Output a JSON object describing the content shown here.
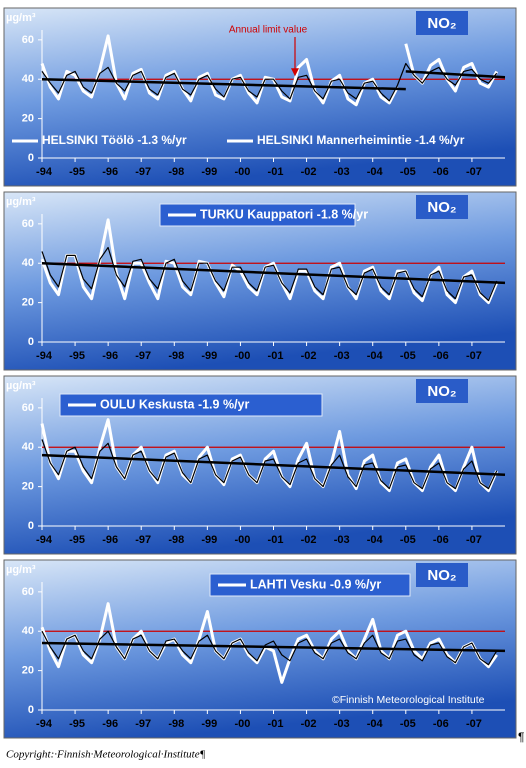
{
  "chart_data": [
    {
      "type": "line",
      "unit_label": "µg/m³",
      "title": "NO₂",
      "annotation": "Annual limit value",
      "legend": "bottom",
      "x": [
        1994,
        1994.25,
        1994.5,
        1994.75,
        1995,
        1995.25,
        1995.5,
        1995.75,
        1996,
        1996.25,
        1996.5,
        1996.75,
        1997,
        1997.25,
        1997.5,
        1997.75,
        1998,
        1998.25,
        1998.5,
        1998.75,
        1999,
        1999.25,
        1999.5,
        1999.75,
        2000,
        2000.25,
        2000.5,
        2000.75,
        2001,
        2001.25,
        2001.5,
        2001.75,
        2002,
        2002.25,
        2002.5,
        2002.75,
        2003,
        2003.25,
        2003.5,
        2003.75,
        2004,
        2004.25,
        2004.5,
        2004.75,
        2005,
        2005.25,
        2005.5,
        2005.75,
        2006,
        2006.25,
        2006.5,
        2006.75,
        2007,
        2007.25,
        2007.5,
        2007.75
      ],
      "series": [
        {
          "name": "HELSINKI Töölö -1.3 %/yr",
          "color": "#ffffff",
          "values": [
            48,
            36,
            30,
            44,
            42,
            34,
            31,
            45,
            62,
            38,
            30,
            43,
            45,
            33,
            30,
            42,
            44,
            35,
            29,
            41,
            43,
            32,
            30,
            40,
            42,
            33,
            28,
            41,
            40,
            31,
            29,
            46,
            50,
            34,
            28,
            39,
            42,
            30,
            27,
            38,
            40,
            31,
            28,
            36,
            null,
            null,
            null,
            null,
            null,
            null,
            null,
            null,
            null,
            null,
            null,
            null
          ]
        },
        {
          "name": "HELSINKI Mannerheimintie  -1.4 %/yr",
          "color": "#ffffff",
          "values": [
            null,
            null,
            null,
            null,
            null,
            null,
            null,
            null,
            null,
            null,
            null,
            null,
            null,
            null,
            null,
            null,
            null,
            null,
            null,
            null,
            null,
            null,
            null,
            null,
            null,
            null,
            null,
            null,
            null,
            null,
            null,
            null,
            null,
            null,
            null,
            null,
            null,
            null,
            null,
            null,
            null,
            null,
            null,
            null,
            58,
            42,
            38,
            47,
            50,
            40,
            34,
            46,
            48,
            38,
            36,
            44
          ]
        },
        {
          "color": "#000000",
          "values": [
            44,
            38,
            33,
            42,
            44,
            36,
            33,
            43,
            46,
            38,
            34,
            42,
            44,
            35,
            32,
            41,
            43,
            35,
            32,
            40,
            42,
            35,
            31,
            40,
            41,
            34,
            31,
            40,
            40,
            34,
            30,
            41,
            42,
            34,
            30,
            39,
            40,
            33,
            30,
            38,
            39,
            33,
            29,
            37,
            48,
            42,
            38,
            44,
            46,
            40,
            37,
            44,
            45,
            40,
            38,
            43
          ]
        }
      ],
      "trends": [
        {
          "x": [
            1994,
            2005
          ],
          "values": [
            40,
            35
          ],
          "color": "#000000"
        },
        {
          "x": [
            2005,
            2008
          ],
          "values": [
            44,
            41
          ],
          "color": "#000000"
        }
      ],
      "limit": 40,
      "limit_color": "#cc0000",
      "xlim": [
        1994,
        2008
      ],
      "ylim": [
        0,
        65
      ],
      "yticks": [
        0,
        20,
        40,
        60
      ],
      "xticks": [
        {
          "value": 1994,
          "label": "-94"
        },
        {
          "value": 1995,
          "label": "-95"
        },
        {
          "value": 1996,
          "label": "-96"
        },
        {
          "value": 1997,
          "label": "-97"
        },
        {
          "value": 1998,
          "label": "-98"
        },
        {
          "value": 1999,
          "label": "-99"
        },
        {
          "value": 2000,
          "label": "-00"
        },
        {
          "value": 2001,
          "label": "-01"
        },
        {
          "value": 2002,
          "label": "-02"
        },
        {
          "value": 2003,
          "label": "-03"
        },
        {
          "value": 2004,
          "label": "-04"
        },
        {
          "value": 2005,
          "label": "-05"
        },
        {
          "value": 2006,
          "label": "-06"
        },
        {
          "value": 2007,
          "label": "-07"
        }
      ]
    },
    {
      "type": "line",
      "unit_label": "µg/m³",
      "title": "NO₂",
      "legend": "top",
      "x": [
        1994,
        1994.25,
        1994.5,
        1994.75,
        1995,
        1995.25,
        1995.5,
        1995.75,
        1996,
        1996.25,
        1996.5,
        1996.75,
        1997,
        1997.25,
        1997.5,
        1997.75,
        1998,
        1998.25,
        1998.5,
        1998.75,
        1999,
        1999.25,
        1999.5,
        1999.75,
        2000,
        2000.25,
        2000.5,
        2000.75,
        2001,
        2001.25,
        2001.5,
        2001.75,
        2002,
        2002.25,
        2002.5,
        2002.75,
        2003,
        2003.25,
        2003.5,
        2003.75,
        2004,
        2004.25,
        2004.5,
        2004.75,
        2005,
        2005.25,
        2005.5,
        2005.75,
        2006,
        2006.25,
        2006.5,
        2006.75,
        2007,
        2007.25,
        2007.5,
        2007.75
      ],
      "series": [
        {
          "name": "TURKU Kauppatori -1.8 %/yr",
          "color": "#ffffff",
          "values": [
            42,
            30,
            24,
            44,
            44,
            28,
            22,
            42,
            62,
            35,
            22,
            40,
            40,
            30,
            22,
            41,
            40,
            28,
            24,
            41,
            40,
            30,
            23,
            39,
            36,
            28,
            24,
            38,
            40,
            30,
            22,
            36,
            36,
            26,
            22,
            38,
            40,
            28,
            22,
            36,
            38,
            26,
            22,
            36,
            36,
            25,
            21,
            34,
            38,
            24,
            20,
            33,
            36,
            24,
            20,
            30
          ]
        },
        {
          "color": "#000000",
          "values": [
            46,
            34,
            28,
            44,
            44,
            32,
            27,
            42,
            48,
            34,
            28,
            41,
            42,
            32,
            27,
            40,
            42,
            31,
            26,
            40,
            40,
            31,
            26,
            38,
            38,
            30,
            26,
            38,
            39,
            30,
            25,
            37,
            37,
            28,
            24,
            37,
            38,
            28,
            24,
            35,
            37,
            28,
            24,
            35,
            36,
            27,
            23,
            34,
            36,
            26,
            22,
            33,
            34,
            25,
            21,
            31
          ]
        }
      ],
      "trends": [
        {
          "x": [
            1994,
            2008
          ],
          "values": [
            40,
            30
          ],
          "color": "#000000"
        }
      ],
      "limit": 40,
      "limit_color": "#cc0000",
      "xlim": [
        1994,
        2008
      ],
      "ylim": [
        0,
        65
      ],
      "yticks": [
        0,
        20,
        40,
        60
      ],
      "xticks": [
        {
          "value": 1994,
          "label": "-94"
        },
        {
          "value": 1995,
          "label": "-95"
        },
        {
          "value": 1996,
          "label": "-96"
        },
        {
          "value": 1997,
          "label": "-97"
        },
        {
          "value": 1998,
          "label": "-98"
        },
        {
          "value": 1999,
          "label": "-99"
        },
        {
          "value": 2000,
          "label": "-00"
        },
        {
          "value": 2001,
          "label": "-01"
        },
        {
          "value": 2002,
          "label": "-02"
        },
        {
          "value": 2003,
          "label": "-03"
        },
        {
          "value": 2004,
          "label": "-04"
        },
        {
          "value": 2005,
          "label": "-05"
        },
        {
          "value": 2006,
          "label": "-06"
        },
        {
          "value": 2007,
          "label": "-07"
        }
      ]
    },
    {
      "type": "line",
      "unit_label": "µg/m³",
      "title": "NO₂",
      "legend": "top",
      "x": [
        1994,
        1994.25,
        1994.5,
        1994.75,
        1995,
        1995.25,
        1995.5,
        1995.75,
        1996,
        1996.25,
        1996.5,
        1996.75,
        1997,
        1997.25,
        1997.5,
        1997.75,
        1998,
        1998.25,
        1998.5,
        1998.75,
        1999,
        1999.25,
        1999.5,
        1999.75,
        2000,
        2000.25,
        2000.5,
        2000.75,
        2001,
        2001.25,
        2001.5,
        2001.75,
        2002,
        2002.25,
        2002.5,
        2002.75,
        2003,
        2003.25,
        2003.5,
        2003.75,
        2004,
        2004.25,
        2004.5,
        2004.75,
        2005,
        2005.25,
        2005.5,
        2005.75,
        2006,
        2006.25,
        2006.5,
        2006.75,
        2007,
        2007.25,
        2007.5,
        2007.75
      ],
      "series": [
        {
          "name": "OULU Keskusta -1.9 %/yr",
          "color": "#ffffff",
          "values": [
            52,
            32,
            24,
            38,
            38,
            28,
            22,
            40,
            54,
            30,
            24,
            36,
            40,
            28,
            22,
            36,
            38,
            26,
            22,
            35,
            40,
            26,
            21,
            34,
            36,
            26,
            22,
            34,
            38,
            25,
            20,
            34,
            42,
            24,
            20,
            32,
            48,
            26,
            19,
            33,
            36,
            22,
            18,
            32,
            34,
            22,
            18,
            30,
            36,
            22,
            18,
            30,
            40,
            22,
            18,
            28
          ]
        },
        {
          "color": "#000000",
          "values": [
            44,
            32,
            26,
            38,
            40,
            30,
            24,
            38,
            42,
            30,
            24,
            36,
            38,
            28,
            23,
            35,
            37,
            27,
            22,
            34,
            36,
            26,
            22,
            33,
            35,
            26,
            22,
            33,
            34,
            25,
            21,
            32,
            34,
            24,
            20,
            31,
            36,
            25,
            20,
            31,
            32,
            23,
            19,
            30,
            31,
            22,
            19,
            29,
            32,
            22,
            19,
            29,
            33,
            22,
            19,
            28
          ]
        }
      ],
      "trends": [
        {
          "x": [
            1994,
            2008
          ],
          "values": [
            36,
            26
          ],
          "color": "#000000"
        }
      ],
      "limit": 40,
      "limit_color": "#cc0000",
      "xlim": [
        1994,
        2008
      ],
      "ylim": [
        0,
        65
      ],
      "yticks": [
        0,
        20,
        40,
        60
      ],
      "xticks": [
        {
          "value": 1994,
          "label": "-94"
        },
        {
          "value": 1995,
          "label": "-95"
        },
        {
          "value": 1996,
          "label": "-96"
        },
        {
          "value": 1997,
          "label": "-97"
        },
        {
          "value": 1998,
          "label": "-98"
        },
        {
          "value": 1999,
          "label": "-99"
        },
        {
          "value": 2000,
          "label": "-00"
        },
        {
          "value": 2001,
          "label": "-01"
        },
        {
          "value": 2002,
          "label": "-02"
        },
        {
          "value": 2003,
          "label": "-03"
        },
        {
          "value": 2004,
          "label": "-04"
        },
        {
          "value": 2005,
          "label": "-05"
        },
        {
          "value": 2006,
          "label": "-06"
        },
        {
          "value": 2007,
          "label": "-07"
        }
      ]
    },
    {
      "type": "line",
      "unit_label": "µg/m³",
      "title": "NO₂",
      "legend": "top",
      "credit": "©Finnish Meteorological Institute",
      "x": [
        1994,
        1994.25,
        1994.5,
        1994.75,
        1995,
        1995.25,
        1995.5,
        1995.75,
        1996,
        1996.25,
        1996.5,
        1996.75,
        1997,
        1997.25,
        1997.5,
        1997.75,
        1998,
        1998.25,
        1998.5,
        1998.75,
        1999,
        1999.25,
        1999.5,
        1999.75,
        2000,
        2000.25,
        2000.5,
        2000.75,
        2001,
        2001.25,
        2001.5,
        2001.75,
        2002,
        2002.25,
        2002.5,
        2002.75,
        2003,
        2003.25,
        2003.5,
        2003.75,
        2004,
        2004.25,
        2004.5,
        2004.75,
        2005,
        2005.25,
        2005.5,
        2005.75,
        2006,
        2006.25,
        2006.5,
        2006.75,
        2007,
        2007.25,
        2007.5,
        2007.75
      ],
      "series": [
        {
          "name": "LAHTI Vesku -0.9 %/yr",
          "color": "#ffffff",
          "values": [
            42,
            30,
            22,
            36,
            38,
            28,
            24,
            36,
            54,
            32,
            26,
            36,
            40,
            30,
            26,
            34,
            36,
            28,
            24,
            36,
            50,
            30,
            26,
            34,
            36,
            28,
            24,
            32,
            30,
            14,
            26,
            36,
            38,
            30,
            26,
            36,
            40,
            30,
            26,
            36,
            46,
            30,
            26,
            38,
            40,
            30,
            26,
            34,
            36,
            28,
            24,
            32,
            34,
            26,
            22,
            28
          ]
        },
        {
          "color": "#000000",
          "values": [
            40,
            32,
            26,
            36,
            38,
            30,
            26,
            36,
            40,
            32,
            26,
            36,
            38,
            30,
            26,
            35,
            36,
            30,
            26,
            35,
            38,
            30,
            26,
            34,
            36,
            29,
            25,
            33,
            35,
            28,
            25,
            34,
            36,
            29,
            26,
            34,
            36,
            29,
            26,
            34,
            38,
            29,
            26,
            35,
            36,
            28,
            25,
            33,
            34,
            27,
            24,
            32,
            34,
            26,
            23,
            30
          ]
        }
      ],
      "trends": [
        {
          "x": [
            1994,
            2008
          ],
          "values": [
            34,
            30
          ],
          "color": "#000000"
        }
      ],
      "limit": 40,
      "limit_color": "#cc0000",
      "xlim": [
        1994,
        2008
      ],
      "ylim": [
        0,
        65
      ],
      "yticks": [
        0,
        20,
        40,
        60
      ],
      "xticks": [
        {
          "value": 1994,
          "label": "-94"
        },
        {
          "value": 1995,
          "label": "-95"
        },
        {
          "value": 1996,
          "label": "-96"
        },
        {
          "value": 1997,
          "label": "-97"
        },
        {
          "value": 1998,
          "label": "-98"
        },
        {
          "value": 1999,
          "label": "-99"
        },
        {
          "value": 2000,
          "label": "-00"
        },
        {
          "value": 2001,
          "label": "-01"
        },
        {
          "value": 2002,
          "label": "-02"
        },
        {
          "value": 2003,
          "label": "-03"
        },
        {
          "value": 2004,
          "label": "-04"
        },
        {
          "value": 2005,
          "label": "-05"
        },
        {
          "value": 2006,
          "label": "-06"
        },
        {
          "value": 2007,
          "label": "-07"
        }
      ]
    }
  ],
  "end_mark": "¶",
  "caption": "Copyright:·Finnish·Meteorological·Institute¶"
}
